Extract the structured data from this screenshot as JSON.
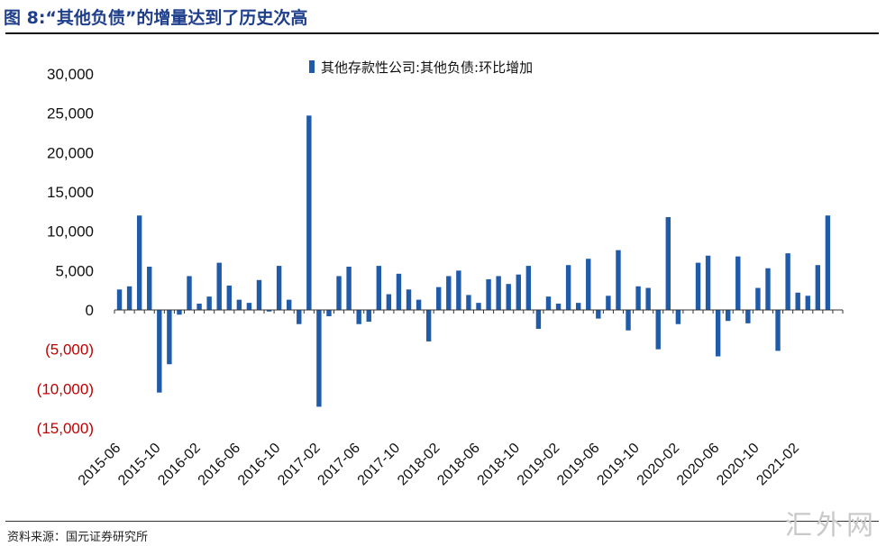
{
  "title": "图 8:“其他负债”的增量达到了历史次高",
  "source": "资料来源：国元证券研究所",
  "watermark": "汇外网",
  "colors": {
    "bar": "#1f5ba8",
    "negative_label": "#c00000",
    "title": "#1f3f8c"
  },
  "chart_data": {
    "type": "bar",
    "legend_position": "top",
    "ylim": [
      -15000,
      30000
    ],
    "yticks": [
      {
        "value": 30000,
        "label": "30,000"
      },
      {
        "value": 25000,
        "label": "25,000"
      },
      {
        "value": 20000,
        "label": "20,000"
      },
      {
        "value": 15000,
        "label": "15,000"
      },
      {
        "value": 10000,
        "label": "10,000"
      },
      {
        "value": 5000,
        "label": "5,000"
      },
      {
        "value": 0,
        "label": "0"
      },
      {
        "value": -5000,
        "label": "(5,000)"
      },
      {
        "value": -10000,
        "label": "(10,000)"
      },
      {
        "value": -15000,
        "label": "(15,000)"
      }
    ],
    "categories": [
      "2015-06",
      "2015-07",
      "2015-08",
      "2015-09",
      "2015-10",
      "2015-11",
      "2015-12",
      "2016-01",
      "2016-02",
      "2016-03",
      "2016-04",
      "2016-05",
      "2016-06",
      "2016-07",
      "2016-08",
      "2016-09",
      "2016-10",
      "2016-11",
      "2016-12",
      "2017-01",
      "2017-02",
      "2017-03",
      "2017-04",
      "2017-05",
      "2017-06",
      "2017-07",
      "2017-08",
      "2017-09",
      "2017-10",
      "2017-11",
      "2017-12",
      "2018-01",
      "2018-02",
      "2018-03",
      "2018-04",
      "2018-05",
      "2018-06",
      "2018-07",
      "2018-08",
      "2018-09",
      "2018-10",
      "2018-11",
      "2018-12",
      "2019-01",
      "2019-02",
      "2019-03",
      "2019-04",
      "2019-05",
      "2019-06",
      "2019-07",
      "2019-08",
      "2019-09",
      "2019-10",
      "2019-11",
      "2019-12",
      "2020-01",
      "2020-02",
      "2020-03",
      "2020-04",
      "2020-05",
      "2020-06",
      "2020-07",
      "2020-08",
      "2020-09",
      "2020-10",
      "2020-11",
      "2020-12",
      "2021-01",
      "2021-02",
      "2021-03",
      "2021-04",
      "2021-05",
      "2021-06"
    ],
    "xtick_labels": [
      "2015-06",
      "2015-10",
      "2016-02",
      "2016-06",
      "2016-10",
      "2017-02",
      "2017-06",
      "2017-10",
      "2018-02",
      "2018-06",
      "2018-10",
      "2019-02",
      "2019-06",
      "2019-10",
      "2020-02",
      "2020-06",
      "2020-10",
      "2021-02"
    ],
    "series": [
      {
        "name": "其他存款性公司:其他负债:环比增加",
        "values": [
          2600,
          3000,
          12000,
          5500,
          -10500,
          -6900,
          -600,
          4300,
          800,
          1700,
          6000,
          3100,
          1300,
          900,
          3800,
          -200,
          5600,
          1300,
          -1800,
          24700,
          -12300,
          -800,
          4300,
          5500,
          -1800,
          -1500,
          5600,
          2000,
          4600,
          2600,
          1300,
          -4000,
          2900,
          4300,
          5000,
          1900,
          900,
          3900,
          4300,
          3300,
          4500,
          5600,
          -2400,
          1700,
          800,
          5700,
          900,
          6500,
          -1100,
          1800,
          7600,
          -2600,
          3000,
          2800,
          -5000,
          11800,
          -1800,
          0,
          6000,
          6900,
          -5900,
          -1400,
          6800,
          -1700,
          2800,
          5300,
          -5200,
          7200,
          2200,
          1800,
          5700,
          12000,
          0
        ]
      }
    ]
  }
}
